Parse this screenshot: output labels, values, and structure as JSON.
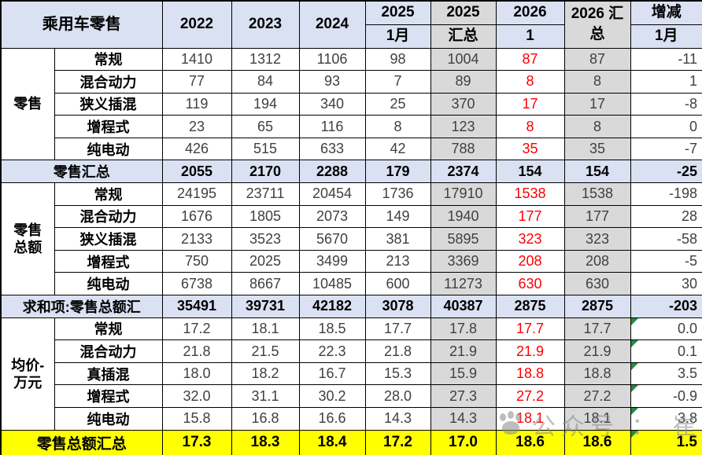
{
  "colors": {
    "header_bg": "#D9E1F2",
    "summary_column_bg": "#D9D9D9",
    "subtotal_row_bg": "#D9E1F2",
    "grand_total_row_bg": "#FFFF00",
    "highlight_text": "#FF0000",
    "flag_triangle": "#1E8F3E"
  },
  "table": {
    "header": {
      "corner": "乘用车零售",
      "y2022": "2022",
      "y2023": "2023",
      "y2024": "2024",
      "m2025_top": "2025",
      "m2025_bottom": "1月",
      "s2025_top": "2025",
      "s2025_bottom": "汇总",
      "m2026_top": "2026",
      "m2026_bottom": "1",
      "s2026": "2026 汇总",
      "delta_top": "增减",
      "delta_bottom": "1月"
    },
    "rows": [
      {
        "type": "data",
        "group": "零售",
        "groupSpan": 5,
        "label": "常规",
        "values": [
          "1410",
          "1312",
          "1106",
          "98",
          "1004",
          "87",
          "87",
          "-11"
        ]
      },
      {
        "type": "data",
        "label": "混合动力",
        "values": [
          "77",
          "84",
          "93",
          "7",
          "89",
          "8",
          "8",
          "1"
        ]
      },
      {
        "type": "data",
        "label": "狭义插混",
        "values": [
          "119",
          "194",
          "340",
          "25",
          "370",
          "17",
          "17",
          "-8"
        ]
      },
      {
        "type": "data",
        "label": "增程式",
        "values": [
          "23",
          "65",
          "116",
          "8",
          "123",
          "8",
          "8",
          "0"
        ]
      },
      {
        "type": "data",
        "label": "纯电动",
        "values": [
          "426",
          "515",
          "633",
          "42",
          "788",
          "35",
          "35",
          "-7"
        ]
      },
      {
        "type": "subtotal",
        "label": "零售汇总",
        "values": [
          "2055",
          "2170",
          "2288",
          "179",
          "2374",
          "154",
          "154",
          "-25"
        ]
      },
      {
        "type": "data",
        "group": "零售总额",
        "groupSpan": 5,
        "label": "常规",
        "values": [
          "24195",
          "23711",
          "20454",
          "1736",
          "17910",
          "1538",
          "1538",
          "-198"
        ]
      },
      {
        "type": "data",
        "label": "混合动力",
        "values": [
          "1676",
          "1805",
          "2073",
          "149",
          "1940",
          "177",
          "177",
          "28"
        ]
      },
      {
        "type": "data",
        "label": "狭义插混",
        "values": [
          "2133",
          "3523",
          "5670",
          "381",
          "5895",
          "323",
          "323",
          "-58"
        ]
      },
      {
        "type": "data",
        "label": "增程式",
        "values": [
          "750",
          "2025",
          "3499",
          "213",
          "3369",
          "208",
          "208",
          "-5"
        ]
      },
      {
        "type": "data",
        "label": "纯电动",
        "values": [
          "6738",
          "8667",
          "10485",
          "600",
          "11273",
          "630",
          "630",
          "30"
        ]
      },
      {
        "type": "subtotal",
        "label": "求和项:零售总额汇",
        "values": [
          "35491",
          "39731",
          "42182",
          "3078",
          "40387",
          "2875",
          "2875",
          "-203"
        ]
      },
      {
        "type": "data",
        "group": "均价-万元",
        "groupSpan": 5,
        "label": "常规",
        "green": true,
        "values": [
          "17.2",
          "18.1",
          "18.5",
          "17.7",
          "17.8",
          "17.7",
          "17.7",
          "0.0"
        ]
      },
      {
        "type": "data",
        "label": "混合动力",
        "green": true,
        "values": [
          "21.8",
          "21.5",
          "22.3",
          "21.8",
          "21.9",
          "21.9",
          "21.9",
          "0.1"
        ]
      },
      {
        "type": "data",
        "label": "真插混",
        "green": true,
        "values": [
          "18.0",
          "18.2",
          "16.7",
          "15.3",
          "15.9",
          "18.8",
          "18.8",
          "3.5"
        ]
      },
      {
        "type": "data",
        "label": "增程式",
        "green": true,
        "values": [
          "32.0",
          "31.1",
          "30.2",
          "28.0",
          "27.3",
          "27.2",
          "27.2",
          "-0.9"
        ]
      },
      {
        "type": "data",
        "label": "纯电动",
        "green": true,
        "values": [
          "15.8",
          "16.8",
          "16.6",
          "14.3",
          "14.3",
          "18.1",
          "18.1",
          "3.8"
        ]
      },
      {
        "type": "grand",
        "label": "零售总额汇总",
        "green": true,
        "values": [
          "17.3",
          "18.3",
          "18.4",
          "17.2",
          "17.0",
          "18.6",
          "18.6",
          "1.5"
        ]
      }
    ]
  },
  "watermark": {
    "icon": "paw-logo",
    "text": "公众号 ： 崔东树"
  }
}
